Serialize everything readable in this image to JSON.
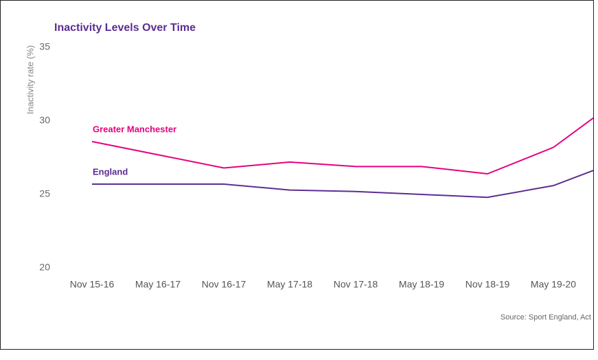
{
  "chart_data": {
    "type": "line",
    "title": "Inactivity Levels Over Time",
    "y_label": "Inactivity rate (%)",
    "source": "Source: Sport England, Act",
    "categories": [
      "Nov 15-16",
      "May 16-17",
      "Nov 16-17",
      "May 17-18",
      "Nov 17-18",
      "May 18-19",
      "Nov 18-19",
      "May 19-20",
      null
    ],
    "series": [
      {
        "name": "Greater Manchester",
        "color": "#e6007e",
        "values": [
          28.6,
          27.7,
          26.8,
          27.2,
          26.9,
          26.9,
          26.4,
          28.2,
          31.5
        ]
      },
      {
        "name": "England",
        "color": "#5c2d91",
        "values": [
          25.7,
          25.7,
          25.7,
          25.3,
          25.2,
          25.0,
          24.8,
          25.6,
          27.3
        ]
      }
    ],
    "ylim": [
      20,
      35
    ],
    "yticks": [
      20,
      25,
      30,
      35
    ],
    "grid": false
  }
}
